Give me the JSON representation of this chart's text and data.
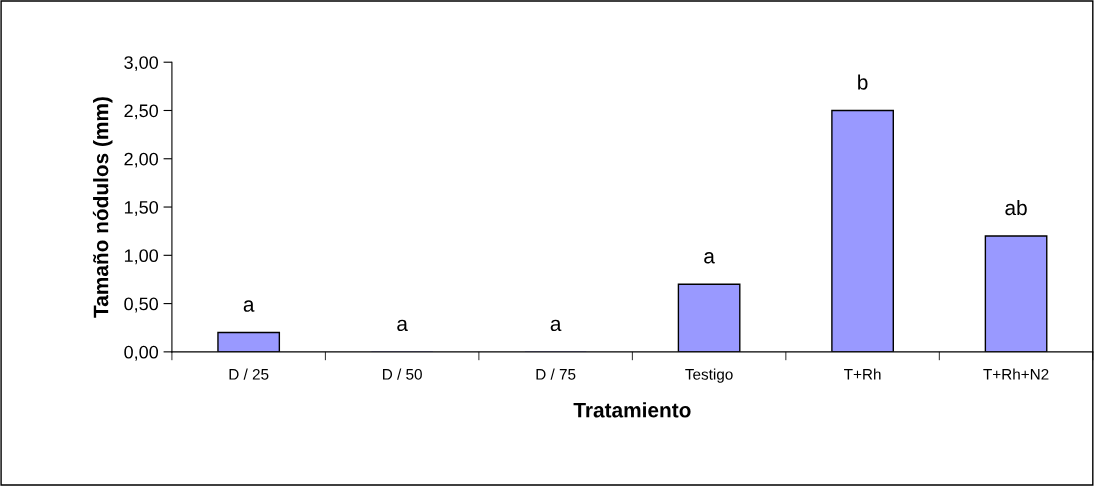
{
  "chart_data": {
    "type": "bar",
    "xlabel": "Tratamiento",
    "ylabel": "Tamaño nódulos (mm)",
    "categories": [
      "D / 25",
      "D / 50",
      "D / 75",
      "Testigo",
      "T+Rh",
      "T+Rh+N2"
    ],
    "values": [
      0.2,
      0,
      0,
      0.7,
      2.5,
      1.2
    ],
    "color": "#9999ff",
    "ylim": [
      0,
      3
    ],
    "yticks": [
      {
        "value": 0,
        "label": "0,00"
      },
      {
        "value": 0.5,
        "label": "0,50"
      },
      {
        "value": 1,
        "label": "1,00"
      },
      {
        "value": 1.5,
        "label": "1,50"
      },
      {
        "value": 2,
        "label": "2,00"
      },
      {
        "value": 2.5,
        "label": "2,50"
      },
      {
        "value": 3,
        "label": "3,00"
      }
    ],
    "grid": false,
    "legend": false,
    "annotations": [
      {
        "text": "a",
        "x": "D / 25",
        "y": 0.2
      },
      {
        "text": "a",
        "x": "D / 50",
        "y": 0
      },
      {
        "text": "a",
        "x": "D / 75",
        "y": 0
      },
      {
        "text": "a",
        "x": "Testigo",
        "y": 0.7
      },
      {
        "text": "b",
        "x": "T+Rh",
        "y": 2.5
      },
      {
        "text": "ab",
        "x": "T+Rh+N2",
        "y": 1.2
      }
    ]
  }
}
